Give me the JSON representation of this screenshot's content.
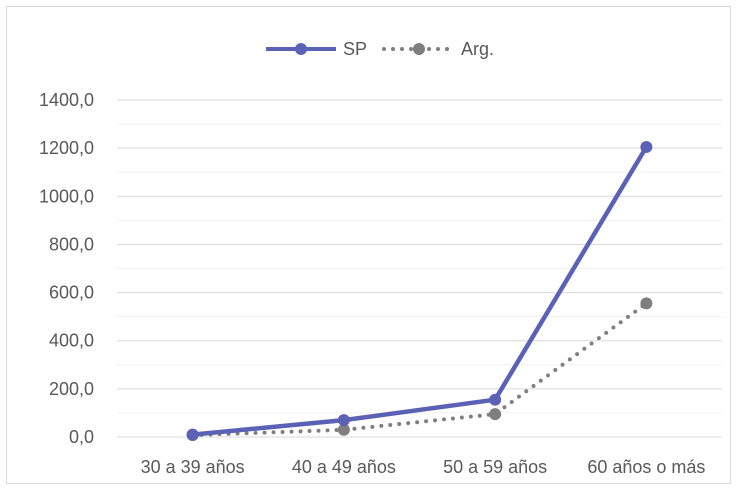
{
  "chart_data": {
    "type": "line",
    "categories": [
      "30 a 39 años",
      "40 a 49 años",
      "50 a 59 años",
      "60 años o más"
    ],
    "series": [
      {
        "name": "SP",
        "values": [
          10,
          70,
          155,
          1205
        ],
        "color": "#5b62b5",
        "style": "solid"
      },
      {
        "name": "Arg.",
        "values": [
          8,
          30,
          95,
          555
        ],
        "color": "#7f7f7f",
        "style": "dotted"
      }
    ],
    "y_ticks": [
      "0,0",
      "200,0",
      "400,0",
      "600,0",
      "800,0",
      "1000,0",
      "1200,0",
      "1400,0"
    ],
    "ylim": [
      0,
      1400
    ],
    "grid": true,
    "legend_position": "top"
  }
}
